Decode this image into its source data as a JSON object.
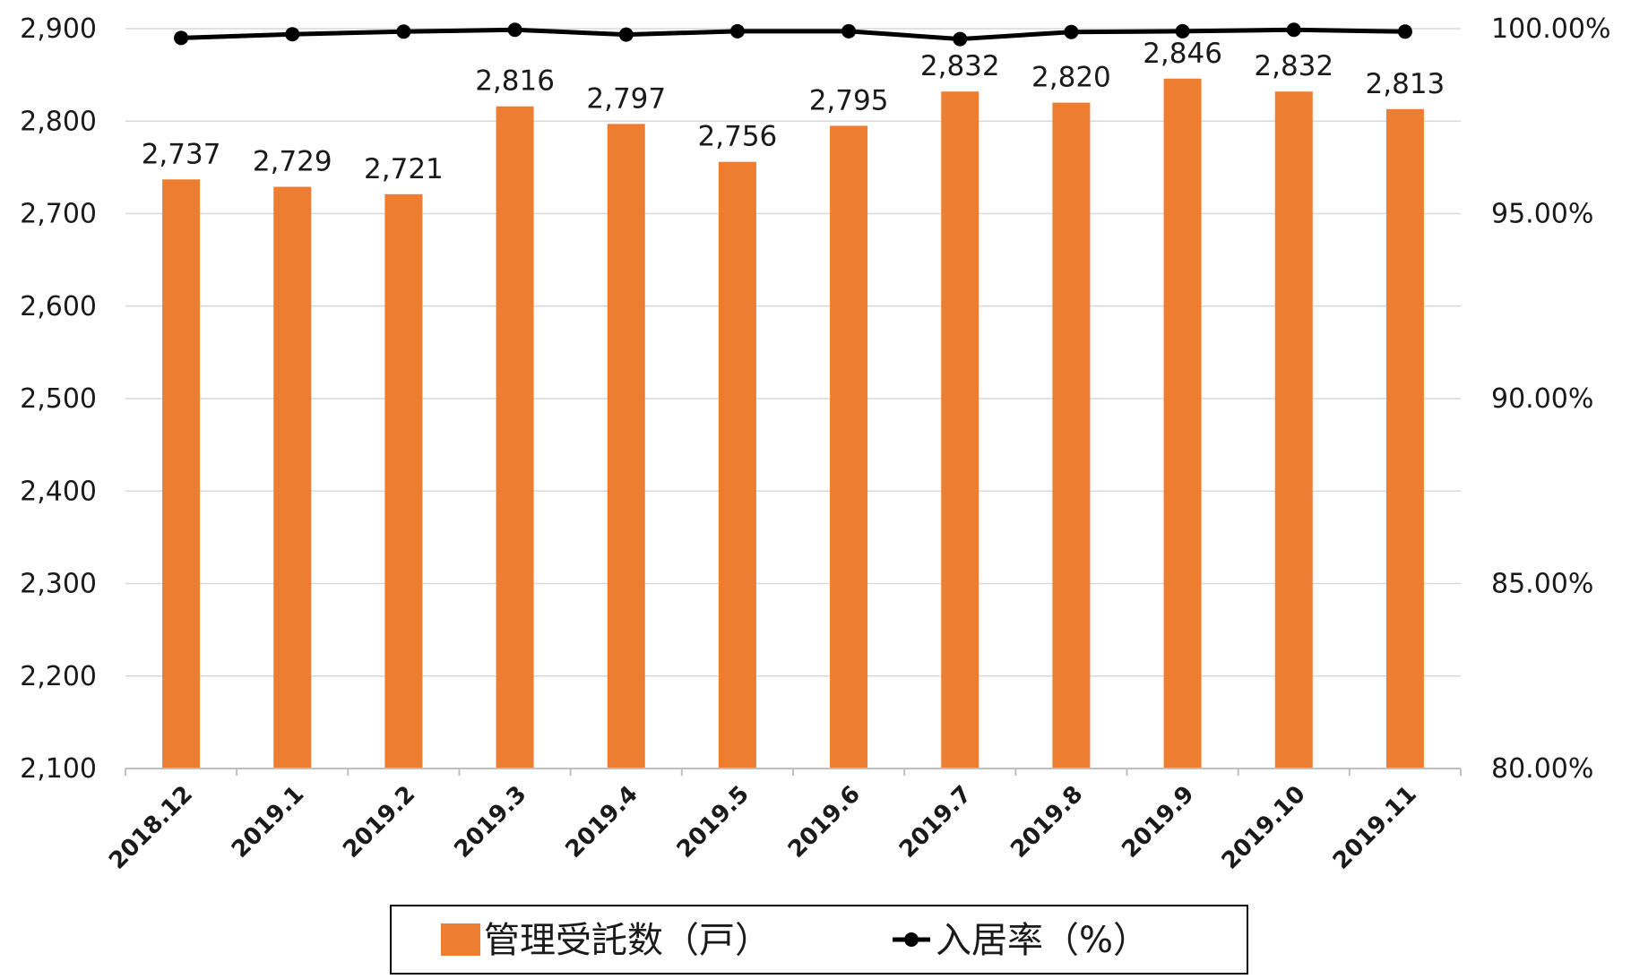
{
  "chart_data": {
    "type": "bar",
    "categories": [
      "2018.12",
      "2019.1",
      "2019.2",
      "2019.3",
      "2019.4",
      "2019.5",
      "2019.6",
      "2019.7",
      "2019.8",
      "2019.9",
      "2019.10",
      "2019.11"
    ],
    "series": [
      {
        "name": "管理受託数（戸）",
        "type": "bar",
        "axis": "left",
        "color": "#ED7D31",
        "values": [
          2737,
          2729,
          2721,
          2816,
          2797,
          2756,
          2795,
          2832,
          2820,
          2846,
          2832,
          2813
        ],
        "labels": [
          "2,737",
          "2,729",
          "2,721",
          "2,816",
          "2,797",
          "2,756",
          "2,795",
          "2,832",
          "2,820",
          "2,846",
          "2,832",
          "2,813"
        ]
      },
      {
        "name": "入居率（%）",
        "type": "line",
        "axis": "right",
        "color": "#000000",
        "values": [
          99.75,
          99.85,
          99.92,
          99.97,
          99.84,
          99.93,
          99.93,
          99.72,
          99.91,
          99.93,
          99.97,
          99.92
        ]
      }
    ],
    "y_left": {
      "min": 2100,
      "max": 2900,
      "ticks": [
        2900,
        2800,
        2700,
        2600,
        2500,
        2400,
        2300,
        2200,
        2100
      ],
      "tick_labels": [
        "2,900",
        "2,800",
        "2,700",
        "2,600",
        "2,500",
        "2,400",
        "2,300",
        "2,200",
        "2,100"
      ]
    },
    "y_right": {
      "min": 80,
      "max": 100,
      "ticks": [
        100,
        95,
        90,
        85,
        80
      ],
      "tick_labels": [
        "100.00%",
        "95.00%",
        "90.00%",
        "85.00%",
        "80.00%"
      ]
    },
    "grid": true,
    "legend_position": "bottom",
    "title": "",
    "xlabel": "",
    "ylabel": ""
  },
  "colors": {
    "grid": "#d9d9d9",
    "axis": "#bfbfbf",
    "legend_border": "#000000"
  }
}
